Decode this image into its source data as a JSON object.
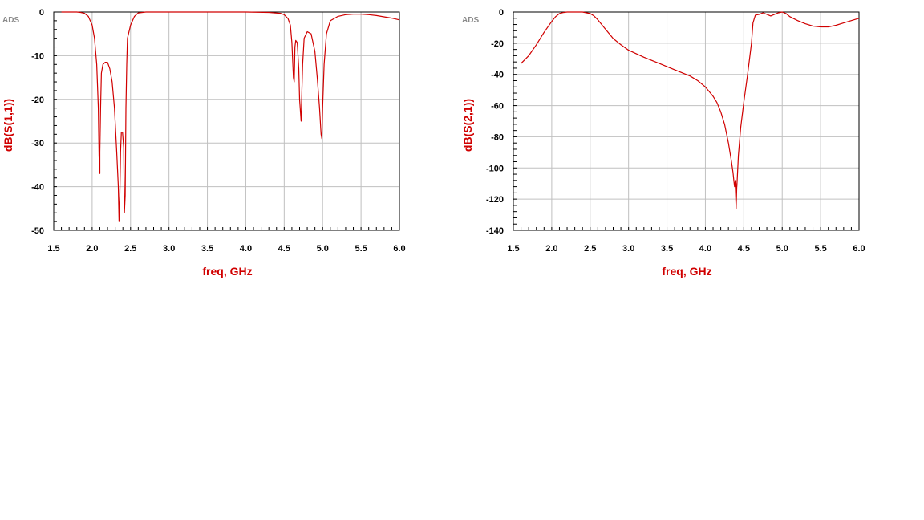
{
  "colors": {
    "trace": "#d00000",
    "grid": "#c0c0c0",
    "frame": "#000000",
    "logo": "#8a8a8a"
  },
  "chart_data": [
    {
      "type": "line",
      "logo": "ADS",
      "xlabel": "freq, GHz",
      "ylabel": "dB(S(1,1))",
      "xlim": [
        1.5,
        6.0
      ],
      "ylim": [
        -50,
        0
      ],
      "xticks": [
        "1.5",
        "2.0",
        "2.5",
        "3.0",
        "3.5",
        "4.0",
        "4.5",
        "5.0",
        "5.5",
        "6.0"
      ],
      "yticks": [
        "0",
        "-10",
        "-20",
        "-30",
        "-40",
        "-50"
      ],
      "grid": true,
      "series": [
        {
          "x": [
            1.6,
            1.7,
            1.8,
            1.85,
            1.9,
            1.95,
            2.0,
            2.03,
            2.06,
            2.08,
            2.09,
            2.1,
            2.1,
            2.11,
            2.12,
            2.14,
            2.17,
            2.2,
            2.23,
            2.26,
            2.29,
            2.32,
            2.34,
            2.35,
            2.36,
            2.37,
            2.38,
            2.395,
            2.41,
            2.42,
            2.43,
            2.44,
            2.45,
            2.46,
            2.5,
            2.55,
            2.6,
            2.7,
            2.8,
            3.0,
            3.5,
            4.0,
            4.3,
            4.45,
            4.5,
            4.55,
            4.58,
            4.6,
            4.62,
            4.63,
            4.64,
            4.65,
            4.67,
            4.69,
            4.7,
            4.72,
            4.73,
            4.74,
            4.76,
            4.8,
            4.85,
            4.9,
            4.93,
            4.96,
            4.98,
            4.99,
            5.0,
            5.02,
            5.05,
            5.1,
            5.2,
            5.3,
            5.4,
            5.5,
            5.6,
            5.7,
            5.8,
            5.9,
            6.0
          ],
          "y": [
            0,
            0,
            0,
            -0.1,
            -0.3,
            -1,
            -3,
            -6,
            -12,
            -22,
            -33,
            -37,
            -32,
            -22,
            -14,
            -12,
            -11.5,
            -11.5,
            -13,
            -16,
            -22,
            -32,
            -40,
            -48,
            -42,
            -32,
            -27.5,
            -27.5,
            -31,
            -46,
            -42,
            -22,
            -12,
            -6,
            -3,
            -1,
            -0.2,
            0,
            0,
            0,
            0,
            0,
            -0.1,
            -0.3,
            -0.6,
            -1.5,
            -3,
            -7,
            -15,
            -16,
            -8,
            -6.5,
            -7,
            -13,
            -20,
            -25,
            -18,
            -12,
            -6,
            -4.5,
            -5,
            -9,
            -15,
            -22,
            -28,
            -29,
            -22,
            -12,
            -5,
            -2,
            -1,
            -0.6,
            -0.5,
            -0.5,
            -0.6,
            -0.8,
            -1.1,
            -1.4,
            -1.8
          ]
        }
      ]
    },
    {
      "type": "line",
      "logo": "ADS",
      "xlabel": "freq, GHz",
      "ylabel": "dB(S(2,1))",
      "xlim": [
        1.5,
        6.0
      ],
      "ylim": [
        -140,
        0
      ],
      "xticks": [
        "1.5",
        "2.0",
        "2.5",
        "3.0",
        "3.5",
        "4.0",
        "4.5",
        "5.0",
        "5.5",
        "6.0"
      ],
      "yticks": [
        "0",
        "-20",
        "-40",
        "-60",
        "-80",
        "-100",
        "-120",
        "-140"
      ],
      "grid": true,
      "series": [
        {
          "x": [
            1.6,
            1.7,
            1.8,
            1.9,
            2.0,
            2.05,
            2.1,
            2.15,
            2.2,
            2.3,
            2.4,
            2.5,
            2.55,
            2.6,
            2.7,
            2.8,
            2.9,
            3.0,
            3.2,
            3.4,
            3.6,
            3.8,
            3.9,
            4.0,
            4.1,
            4.15,
            4.2,
            4.25,
            4.3,
            4.34,
            4.36,
            4.37,
            4.38,
            4.39,
            4.39,
            4.4,
            4.41,
            4.41,
            4.43,
            4.46,
            4.5,
            4.55,
            4.6,
            4.62,
            4.65,
            4.7,
            4.75,
            4.8,
            4.85,
            4.9,
            4.95,
            5.0,
            5.05,
            5.1,
            5.2,
            5.3,
            5.4,
            5.5,
            5.6,
            5.7,
            5.8,
            5.9,
            6.0
          ],
          "y": [
            -33,
            -28,
            -21,
            -13,
            -6,
            -3,
            -1,
            -0.3,
            0,
            0,
            0,
            -1,
            -2.5,
            -5,
            -11,
            -17,
            -21,
            -24.5,
            -29,
            -33,
            -37,
            -41,
            -44,
            -48,
            -54,
            -58,
            -64,
            -72,
            -84,
            -96,
            -103,
            -108,
            -112,
            -108,
            -112,
            -126,
            -110,
            -112,
            -92,
            -74,
            -58,
            -40,
            -20,
            -7,
            -2,
            -1.5,
            -0.5,
            -1.5,
            -2.5,
            -1.5,
            -0.5,
            0,
            -1,
            -3,
            -5.5,
            -7.5,
            -9,
            -9.5,
            -9.5,
            -8.5,
            -7,
            -5.5,
            -4
          ]
        }
      ]
    }
  ]
}
